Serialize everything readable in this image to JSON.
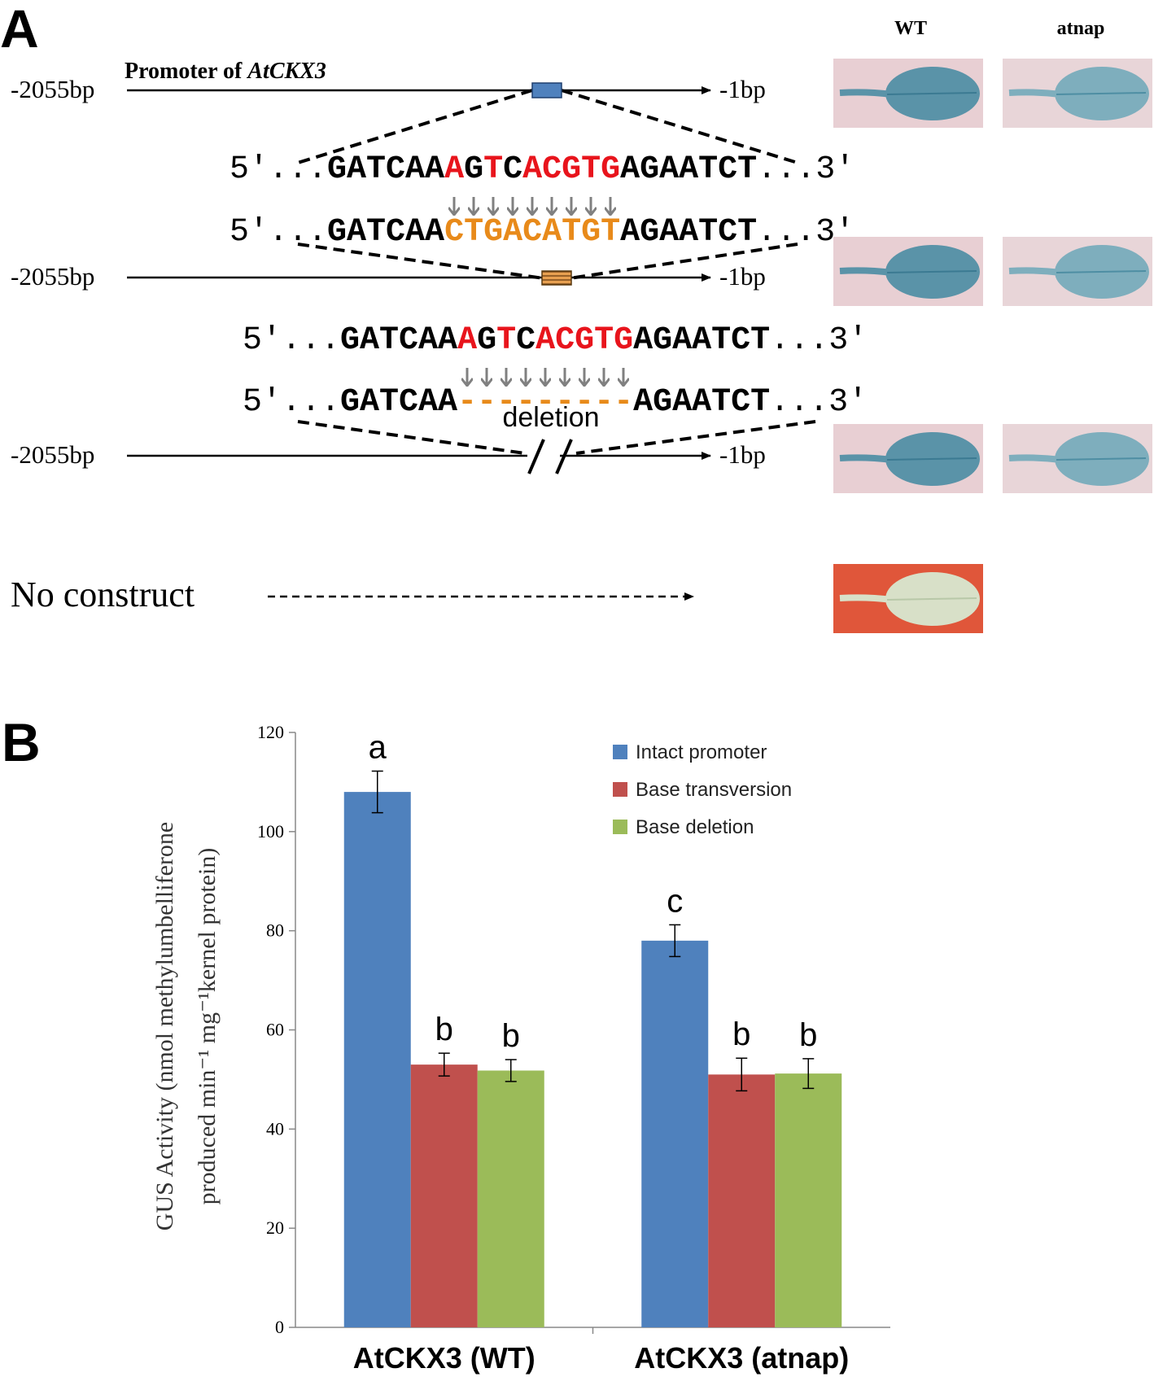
{
  "panel_a": {
    "label": "A",
    "column_headers": [
      "WT",
      "atnap"
    ],
    "promoter_label": "Promoter of ",
    "promoter_gene": "AtCKX3",
    "rows": [
      {
        "start": "-2055bp",
        "end": "-1bp"
      },
      {
        "start": "-2055bp",
        "end": "-1bp"
      },
      {
        "start": "-2055bp",
        "end": "-1bp"
      }
    ],
    "sequences": [
      {
        "prefix": "5′...",
        "suffix": "...3′",
        "parts": [
          {
            "text": "GATCAA",
            "color": "#000000"
          },
          {
            "text": "A",
            "color": "#e8141c"
          },
          {
            "text": "G",
            "color": "#000000"
          },
          {
            "text": "T",
            "color": "#e8141c"
          },
          {
            "text": "C",
            "color": "#000000"
          },
          {
            "text": "ACGTG",
            "color": "#e8141c"
          },
          {
            "text": "AGAATCT",
            "color": "#000000"
          }
        ]
      },
      {
        "prefix": "5′...",
        "suffix": "...3′",
        "parts": [
          {
            "text": "GATCAA",
            "color": "#000000"
          },
          {
            "text": "CTGACATGT",
            "color": "#e88a1a"
          },
          {
            "text": "AGAATCT",
            "color": "#000000"
          }
        ]
      },
      {
        "prefix": "5′...",
        "suffix": "...3′",
        "parts": [
          {
            "text": "GATCAA",
            "color": "#000000"
          },
          {
            "text": "A",
            "color": "#e8141c"
          },
          {
            "text": "G",
            "color": "#000000"
          },
          {
            "text": "T",
            "color": "#e8141c"
          },
          {
            "text": "C",
            "color": "#000000"
          },
          {
            "text": "ACGTG",
            "color": "#e8141c"
          },
          {
            "text": "AGAATCT",
            "color": "#000000"
          }
        ]
      },
      {
        "prefix": "5′...",
        "suffix": "...3′",
        "parts": [
          {
            "text": "GATCAA",
            "color": "#000000"
          },
          {
            "text": "---------",
            "color": "#e88a1a"
          },
          {
            "text": "AGAATCT",
            "color": "#000000"
          }
        ]
      }
    ],
    "deletion_label": "deletion",
    "no_construct": "No construct"
  },
  "panel_b_label": "B",
  "chart_data": {
    "type": "bar",
    "y_label": [
      "GUS Activity (nmol methylumbelliferone",
      "produced min⁻¹ mg⁻¹kernel  protein)"
    ],
    "categories": [
      "AtCKX3 (WT)",
      "AtCKX3 (atnap)"
    ],
    "series": [
      {
        "name": "Intact promoter",
        "color": "#4f81bd",
        "values": [
          108,
          78
        ],
        "errors": [
          4.2,
          3.2
        ],
        "letters": [
          "a",
          "c"
        ]
      },
      {
        "name": "Base transversion",
        "color": "#c0504d",
        "values": [
          53,
          51
        ],
        "errors": [
          2.3,
          3.3
        ],
        "letters": [
          "b",
          "b"
        ]
      },
      {
        "name": "Base deletion",
        "color": "#9bbb59",
        "values": [
          51.8,
          51.2
        ],
        "errors": [
          2.2,
          3.0
        ],
        "letters": [
          "b",
          "b"
        ]
      }
    ],
    "ylim": [
      0,
      120
    ],
    "yticks": [
      0,
      20,
      40,
      60,
      80,
      100,
      120
    ],
    "legend": "top-right",
    "grid": false
  }
}
